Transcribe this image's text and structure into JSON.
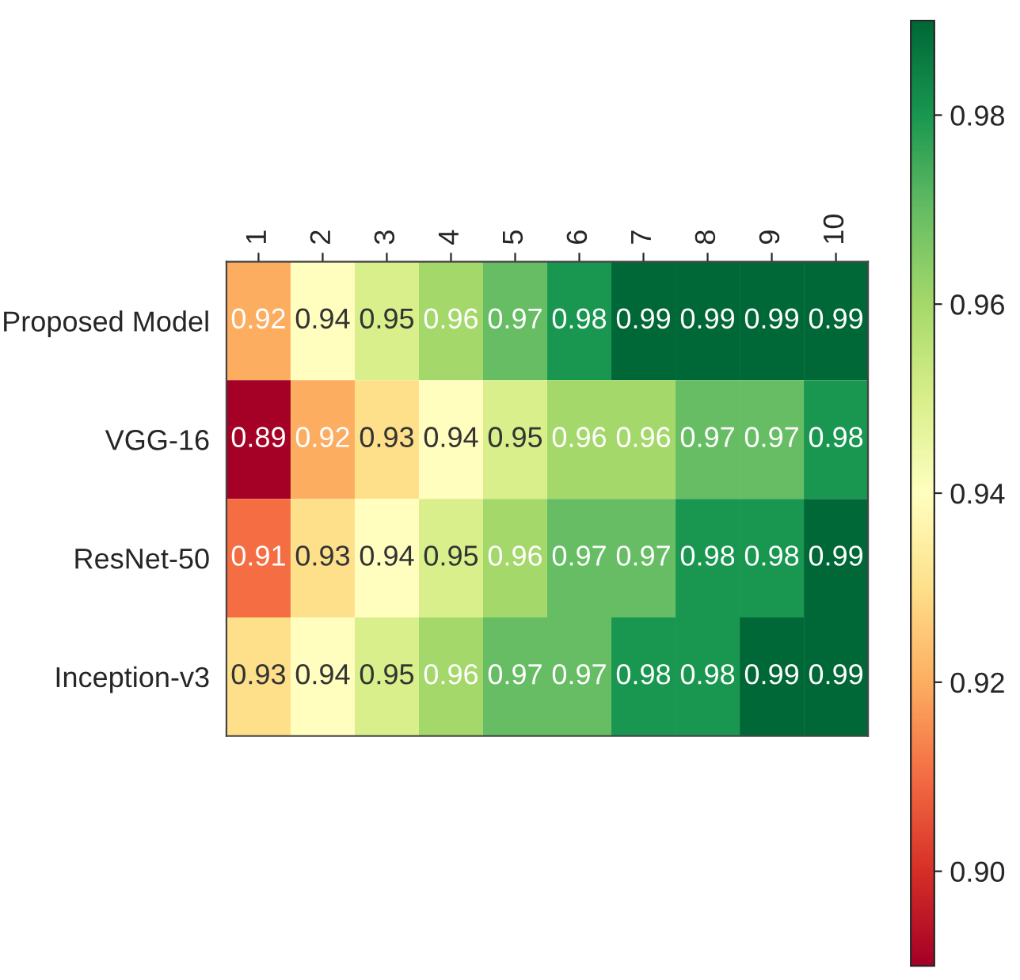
{
  "chart_data": {
    "type": "heatmap",
    "categories": [
      "1",
      "2",
      "3",
      "4",
      "5",
      "6",
      "7",
      "8",
      "9",
      "10"
    ],
    "y_categories": [
      "Proposed Model",
      "VGG-16",
      "ResNet-50",
      "Inception-v3"
    ],
    "cells": [
      [
        0.92,
        0.94,
        0.95,
        0.96,
        0.97,
        0.98,
        0.99,
        0.99,
        0.99,
        0.99
      ],
      [
        0.89,
        0.92,
        0.93,
        0.94,
        0.95,
        0.96,
        0.96,
        0.97,
        0.97,
        0.98
      ],
      [
        0.91,
        0.93,
        0.94,
        0.95,
        0.96,
        0.97,
        0.97,
        0.98,
        0.98,
        0.99
      ],
      [
        0.93,
        0.94,
        0.95,
        0.96,
        0.97,
        0.97,
        0.98,
        0.98,
        0.99,
        0.99
      ]
    ],
    "clim": [
      0.89,
      0.99
    ],
    "cticks": [
      {
        "value": 0.9,
        "label": "0.90"
      },
      {
        "value": 0.92,
        "label": "0.92"
      },
      {
        "value": 0.94,
        "label": "0.94"
      },
      {
        "value": 0.96,
        "label": "0.96"
      },
      {
        "value": 0.98,
        "label": "0.98"
      }
    ],
    "data_labels": true
  }
}
